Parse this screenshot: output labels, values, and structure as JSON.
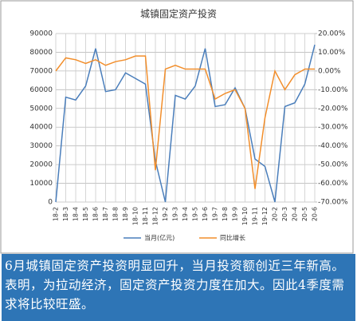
{
  "chart_data": {
    "type": "line",
    "title": "城镇固定资产投资",
    "categories": [
      "18-2",
      "18-3",
      "18-4",
      "18-5",
      "18-6",
      "18-7",
      "18-8",
      "18-9",
      "18-10",
      "18-11",
      "18-12",
      "19-2",
      "19-3",
      "19-4",
      "19-5",
      "19-6",
      "19-7",
      "19-8",
      "19-9",
      "19-10",
      "19-11",
      "19-12",
      "20-2",
      "20-3",
      "20-4",
      "20-5",
      "20-6"
    ],
    "series": [
      {
        "name": "当月(亿元)",
        "color": "#4a7ebb",
        "values": [
          0,
          56000,
          54500,
          62000,
          82000,
          59000,
          60000,
          69000,
          66000,
          63000,
          22000,
          0,
          57000,
          55000,
          62000,
          82000,
          51000,
          52000,
          61000,
          50000,
          23000,
          19000,
          0,
          51000,
          53000,
          63000,
          84000
        ]
      },
      {
        "name": "同比增长",
        "color": "#f28e2b",
        "axis": "y2",
        "values": [
          0,
          7,
          6,
          4,
          6,
          3,
          5,
          6,
          8,
          8,
          -53,
          1,
          3,
          1,
          1,
          1,
          -15,
          -12,
          -10,
          -20,
          -63,
          -25,
          0,
          -10,
          -2,
          1,
          1
        ]
      }
    ],
    "ylim": [
      0,
      90000
    ],
    "yticks": [
      0,
      10000,
      20000,
      30000,
      40000,
      50000,
      60000,
      70000,
      80000,
      90000
    ],
    "y2lim": [
      -70,
      20
    ],
    "y2ticks": [
      {
        "value": 20,
        "label": "20.00%"
      },
      {
        "value": 10,
        "label": "10.00%"
      },
      {
        "value": 0,
        "label": "0.00%"
      },
      {
        "value": -10,
        "label": "-10.00%"
      },
      {
        "value": -20,
        "label": "-20.00%"
      },
      {
        "value": -30,
        "label": "-30.00%"
      },
      {
        "value": -40,
        "label": "-40.00%"
      },
      {
        "value": -50,
        "label": "-50.00%"
      },
      {
        "value": -60,
        "label": "-60.00%"
      },
      {
        "value": -70,
        "label": "-70.00%"
      }
    ],
    "grid": true,
    "legend": "bottom"
  },
  "note": "6月城镇固定资产投资明显回升，当月投资额创近三年新高。表明，为拉动经济，固定资产投资力度在加大。因此4季度需求将比较旺盛。"
}
